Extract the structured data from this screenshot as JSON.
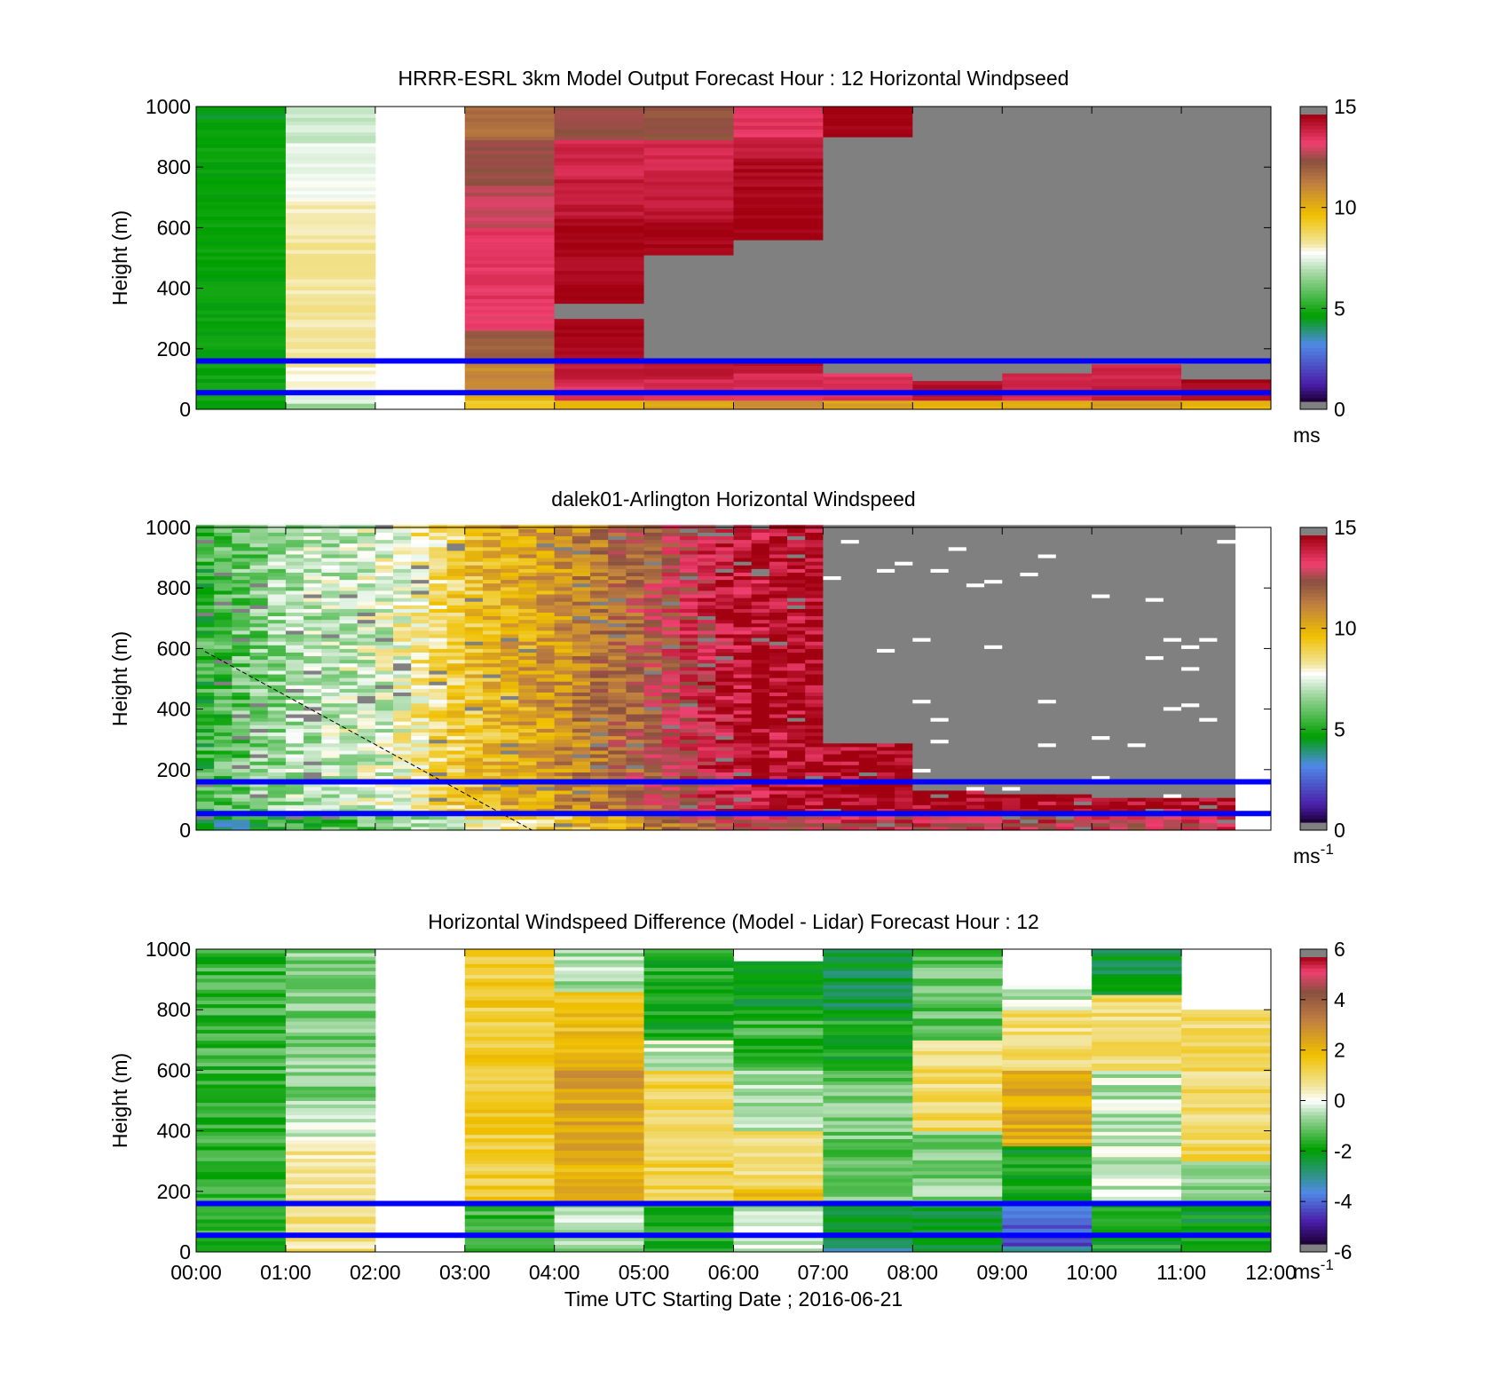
{
  "chart_data": [
    {
      "type": "heatmap",
      "title": "HRRR-ESRL 3km Model Output   Forecast Hour : 12 Horizontal Windpseed",
      "ylabel": "Height (m)",
      "y_ticks": [
        "0",
        "200",
        "400",
        "600",
        "800",
        "1000"
      ],
      "ylim": [
        0,
        1000
      ],
      "x_range_hours": [
        0,
        12
      ],
      "colorbar": {
        "min": 0,
        "max": 15,
        "ticks": [
          "0",
          "5",
          "10",
          "15"
        ],
        "unit": "ms"
      },
      "reference_lines_m": [
        160,
        55
      ],
      "missing_value_color": "#808080",
      "columns": [
        {
          "hour": 0,
          "bands": [
            [
              0,
              30,
              4.5
            ],
            [
              30,
              960,
              4.6
            ],
            [
              960,
              1000,
              4.4
            ]
          ]
        },
        {
          "hour": 1,
          "bands": [
            [
              0,
              20,
              6.6
            ],
            [
              20,
              60,
              7.4
            ],
            [
              60,
              140,
              7.9
            ],
            [
              140,
              600,
              8.3
            ],
            [
              600,
              700,
              8.1
            ],
            [
              700,
              790,
              7.7
            ],
            [
              790,
              880,
              7.6
            ],
            [
              880,
              1000,
              7.2
            ]
          ]
        },
        {
          "hour": 2,
          "bands": []
        },
        {
          "hour": 3,
          "bands": [
            [
              0,
              30,
              9.4
            ],
            [
              30,
              60,
              10.4
            ],
            [
              60,
              150,
              11.2
            ],
            [
              150,
              260,
              12.2
            ],
            [
              260,
              330,
              13.5
            ],
            [
              330,
              470,
              13.7
            ],
            [
              470,
              600,
              13.8
            ],
            [
              600,
              740,
              13.1
            ],
            [
              740,
              890,
              12.6
            ],
            [
              890,
              1000,
              11.8
            ]
          ]
        },
        {
          "hour": 4,
          "bands": [
            [
              0,
              30,
              10.1
            ],
            [
              30,
              100,
              13.9
            ],
            [
              100,
              170,
              14.3
            ],
            [
              170,
              300,
              14.9
            ],
            [
              300,
              350,
              null
            ],
            [
              350,
              400,
              15.0
            ],
            [
              400,
              540,
              14.8
            ],
            [
              540,
              630,
              14.9
            ],
            [
              630,
              760,
              14.4
            ],
            [
              760,
              890,
              14.1
            ],
            [
              890,
              1000,
              12.7
            ]
          ]
        },
        {
          "hour": 5,
          "bands": [
            [
              0,
              30,
              10.4
            ],
            [
              30,
              100,
              14.0
            ],
            [
              100,
              170,
              14.4
            ],
            [
              170,
              510,
              null
            ],
            [
              510,
              630,
              14.9
            ],
            [
              630,
              790,
              14.4
            ],
            [
              790,
              890,
              14.1
            ],
            [
              890,
              1000,
              12.5
            ]
          ]
        },
        {
          "hour": 6,
          "bands": [
            [
              0,
              30,
              10.9
            ],
            [
              30,
              120,
              13.9
            ],
            [
              120,
              170,
              14.6
            ],
            [
              170,
              560,
              null
            ],
            [
              560,
              690,
              15.0
            ],
            [
              690,
              830,
              14.8
            ],
            [
              830,
              900,
              14.2
            ],
            [
              900,
              1000,
              13.8
            ]
          ]
        },
        {
          "hour": 7,
          "bands": [
            [
              0,
              30,
              10.6
            ],
            [
              30,
              120,
              13.8
            ],
            [
              120,
              900,
              null
            ],
            [
              900,
              1000,
              15.0
            ]
          ]
        },
        {
          "hour": 8,
          "bands": [
            [
              0,
              30,
              10.2
            ],
            [
              30,
              95,
              14.6
            ],
            [
              95,
              1000,
              null
            ]
          ]
        },
        {
          "hour": 9,
          "bands": [
            [
              0,
              30,
              10.3
            ],
            [
              30,
              120,
              14.1
            ],
            [
              120,
              1000,
              null
            ]
          ]
        },
        {
          "hour": 10,
          "bands": [
            [
              0,
              30,
              10.5
            ],
            [
              30,
              150,
              14.2
            ],
            [
              150,
              1000,
              null
            ]
          ]
        },
        {
          "hour": 11,
          "bands": [
            [
              0,
              30,
              10.0
            ],
            [
              30,
              100,
              14.8
            ],
            [
              100,
              1000,
              null
            ]
          ]
        }
      ]
    },
    {
      "type": "heatmap",
      "title": "dalek01-Arlington  Horizontal Windspeed",
      "ylabel": "Height (m)",
      "y_ticks": [
        "0",
        "200",
        "400",
        "600",
        "800",
        "1000"
      ],
      "ylim": [
        0,
        1000
      ],
      "x_range_hours": [
        0,
        12
      ],
      "colorbar": {
        "min": 0,
        "max": 15,
        "ticks": [
          "0",
          "5",
          "10",
          "15"
        ],
        "unit": "ms",
        "unit_exponent": "-1"
      },
      "reference_lines_m": [
        160,
        55
      ],
      "missing_value_color": "#808080",
      "approx_column_mean_ms": [
        5.2,
        6.8,
        7.4,
        9.6,
        11.0,
        12.6,
        14.6,
        15.0,
        15.0,
        15.0,
        15.0,
        15.0
      ],
      "approx_valid_data_top_m": [
        1000,
        1000,
        1000,
        1000,
        1000,
        1000,
        1000,
        280,
        130,
        110,
        100,
        100
      ]
    },
    {
      "type": "heatmap",
      "title": "Horizontal Windspeed Difference (Model - Lidar) Forecast Hour : 12",
      "xlabel": "Time UTC  Starting Date ; 2016-06-21",
      "ylabel": "Height (m)",
      "x_ticks": [
        "00:00",
        "01:00",
        "02:00",
        "03:00",
        "04:00",
        "05:00",
        "06:00",
        "07:00",
        "08:00",
        "09:00",
        "10:00",
        "11:00",
        "12:00"
      ],
      "y_ticks": [
        "0",
        "200",
        "400",
        "600",
        "800",
        "1000"
      ],
      "ylim": [
        0,
        1000
      ],
      "x_range_hours": [
        0,
        12
      ],
      "colorbar": {
        "min": -6,
        "max": 6,
        "ticks": [
          "-6",
          "-4",
          "-2",
          "0",
          "2",
          "4",
          "6"
        ],
        "unit": "ms",
        "unit_exponent": "-1"
      },
      "reference_lines_m": [
        160,
        55
      ],
      "columns": [
        {
          "hour": 0,
          "bands": [
            [
              0,
              1000,
              -1.6
            ]
          ]
        },
        {
          "hour": 1,
          "bands": [
            [
              0,
              200,
              0.8
            ],
            [
              200,
              370,
              0.6
            ],
            [
              370,
              500,
              -0.4
            ],
            [
              500,
              1000,
              -0.9
            ]
          ]
        },
        {
          "hour": 2,
          "bands": []
        },
        {
          "hour": 3,
          "bands": [
            [
              0,
              160,
              -1.6
            ],
            [
              160,
              1000,
              1.5
            ]
          ]
        },
        {
          "hour": 4,
          "bands": [
            [
              0,
              160,
              -0.6
            ],
            [
              160,
              300,
              2.1
            ],
            [
              300,
              600,
              2.6
            ],
            [
              600,
              860,
              1.9
            ],
            [
              860,
              1000,
              -0.6
            ]
          ]
        },
        {
          "hour": 5,
          "bands": [
            [
              0,
              160,
              -1.8
            ],
            [
              160,
              400,
              1.3
            ],
            [
              400,
              600,
              1.2
            ],
            [
              600,
              700,
              -0.3
            ],
            [
              700,
              1000,
              -1.8
            ]
          ]
        },
        {
          "hour": 6,
          "bands": [
            [
              0,
              160,
              -0.5
            ],
            [
              160,
              220,
              1.8
            ],
            [
              220,
              400,
              1.0
            ],
            [
              400,
              600,
              -0.6
            ],
            [
              600,
              800,
              -1.6
            ],
            [
              800,
              960,
              -2.2
            ]
          ]
        },
        {
          "hour": 7,
          "bands": [
            [
              0,
              40,
              -3.0
            ],
            [
              40,
              160,
              -2.4
            ],
            [
              160,
              600,
              -1.1
            ],
            [
              600,
              800,
              -1.9
            ],
            [
              800,
              1000,
              -2.5
            ]
          ]
        },
        {
          "hour": 8,
          "bands": [
            [
              0,
              160,
              -2.6
            ],
            [
              160,
              400,
              -0.9
            ],
            [
              400,
              700,
              1.0
            ],
            [
              700,
              1000,
              -1.2
            ]
          ]
        },
        {
          "hour": 9,
          "bands": [
            [
              0,
              20,
              -3.0
            ],
            [
              20,
              160,
              -4.3
            ],
            [
              160,
              350,
              -2.1
            ],
            [
              350,
              600,
              2.3
            ],
            [
              600,
              800,
              1.0
            ],
            [
              800,
              880,
              -0.4
            ]
          ]
        },
        {
          "hour": 10,
          "bands": [
            [
              0,
              160,
              -2.0
            ],
            [
              160,
              600,
              -0.4
            ],
            [
              600,
              850,
              1.0
            ],
            [
              850,
              1000,
              -2.4
            ]
          ]
        },
        {
          "hour": 11,
          "bands": [
            [
              0,
              160,
              -2.2
            ],
            [
              160,
              300,
              -0.6
            ],
            [
              300,
              800,
              1.1
            ]
          ]
        }
      ]
    }
  ]
}
